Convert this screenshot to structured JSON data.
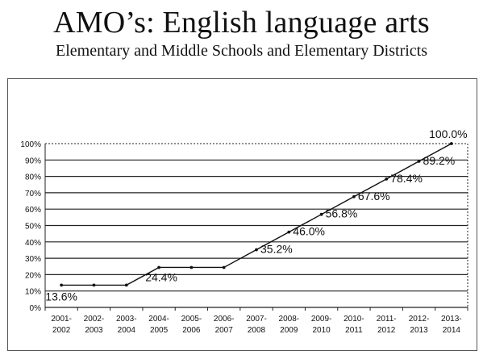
{
  "page": {
    "title": "AMO’s:  English language arts",
    "subtitle": "Elementary and Middle Schools and Elementary Districts"
  },
  "chart_data": {
    "type": "line",
    "title": "",
    "xlabel": "",
    "ylabel": "",
    "ylim": [
      0,
      100
    ],
    "yticks": [
      "0%",
      "10%",
      "20%",
      "30%",
      "40%",
      "50%",
      "60%",
      "70%",
      "80%",
      "90%",
      "100%"
    ],
    "grid": true,
    "categories": [
      [
        "2001-",
        "2002"
      ],
      [
        "2002-",
        "2003"
      ],
      [
        "2003-",
        "2004"
      ],
      [
        "2004-",
        "2005"
      ],
      [
        "2005-",
        "2006"
      ],
      [
        "2006-",
        "2007"
      ],
      [
        "2007-",
        "2008"
      ],
      [
        "2008-",
        "2009"
      ],
      [
        "2009-",
        "2010"
      ],
      [
        "2010-",
        "2011"
      ],
      [
        "2011-",
        "2012"
      ],
      [
        "2012-",
        "2013"
      ],
      [
        "2013-",
        "2014"
      ]
    ],
    "series": [
      {
        "values": [
          13.6,
          13.6,
          13.6,
          24.4,
          24.4,
          24.4,
          35.2,
          46.0,
          56.8,
          67.6,
          78.4,
          89.2,
          100.0
        ]
      }
    ],
    "data_labels": [
      {
        "index": 0,
        "text": "13.6%"
      },
      {
        "index": 3,
        "text": "24.4%"
      },
      {
        "index": 6,
        "text": "35.2%"
      },
      {
        "index": 7,
        "text": "46.0%"
      },
      {
        "index": 8,
        "text": "56.8%"
      },
      {
        "index": 9,
        "text": "67.6%"
      },
      {
        "index": 10,
        "text": "78.4%"
      },
      {
        "index": 11,
        "text": "89.2%"
      },
      {
        "index": 12,
        "text": "100.0%"
      }
    ],
    "colors": {
      "line": "#111111",
      "grid": "#222222",
      "border": "#555555"
    }
  }
}
